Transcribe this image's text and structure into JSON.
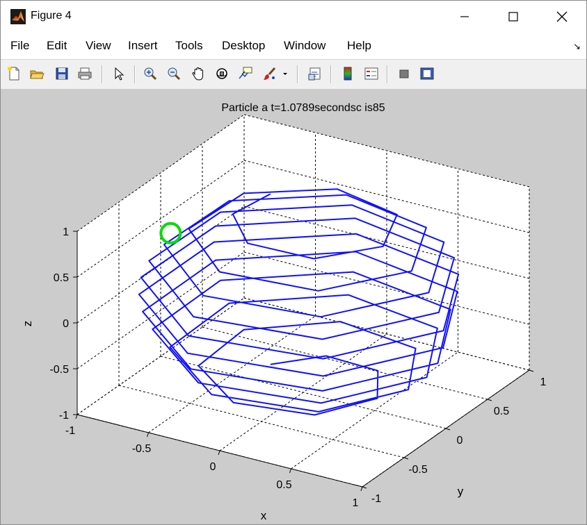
{
  "window": {
    "title": "Figure 4",
    "minimize_glyph": "—",
    "maximize_glyph": "☐",
    "close_glyph": "✕"
  },
  "menu": {
    "items": [
      "File",
      "Edit",
      "View",
      "Insert",
      "Tools",
      "Desktop",
      "Window",
      "Help"
    ],
    "dock_glyph": "↘"
  },
  "toolbar": {
    "buttons": [
      "new-figure-icon",
      "open-file-icon",
      "save-icon",
      "print-icon",
      "select-arrow-icon",
      "zoom-in-icon",
      "zoom-out-icon",
      "pan-hand-icon",
      "rotate-3d-icon",
      "data-cursor-icon",
      "brush-icon",
      "brush-dropdown-icon",
      "link-plot-icon",
      "colorbar-icon",
      "legend-icon",
      "hide-plot-tools-icon",
      "show-plot-tools-icon"
    ]
  },
  "colors": {
    "trajectory": "#1010ff",
    "marker": "#00dd00",
    "axes_background": "#ffffff",
    "figure_background": "#cccccc"
  },
  "chart_data": {
    "type": "line",
    "projection": "3d",
    "title": "Particle a t=1.0789secondsc is85",
    "xlabel": "x",
    "ylabel": "y",
    "zlabel": "z",
    "xlim": [
      -1,
      1
    ],
    "ylim": [
      -1,
      1
    ],
    "zlim": [
      -1,
      1
    ],
    "xticks": [
      -1,
      -0.5,
      0,
      0.5,
      1
    ],
    "yticks": [
      -1,
      -0.5,
      0,
      0.5,
      1
    ],
    "zticks": [
      -1,
      -0.5,
      0,
      0.5,
      1
    ],
    "xtick_labels": [
      "-1",
      "-0.5",
      "0",
      "0.5",
      "1"
    ],
    "ytick_labels": [
      "-1",
      "-0.5",
      "0",
      "0.5",
      "1"
    ],
    "ztick_labels": [
      "-1",
      "-0.5",
      "0",
      "0.5",
      "1"
    ],
    "grid": true,
    "series": [
      {
        "curve": "spherical spiral, turns about z-axis",
        "turns": 10,
        "samples_per_turn": 7,
        "z_range": [
          -0.93,
          0.93
        ]
      }
    ],
    "marker_point": {
      "x": -0.93,
      "y": 0.0,
      "z": 0.37
    }
  }
}
